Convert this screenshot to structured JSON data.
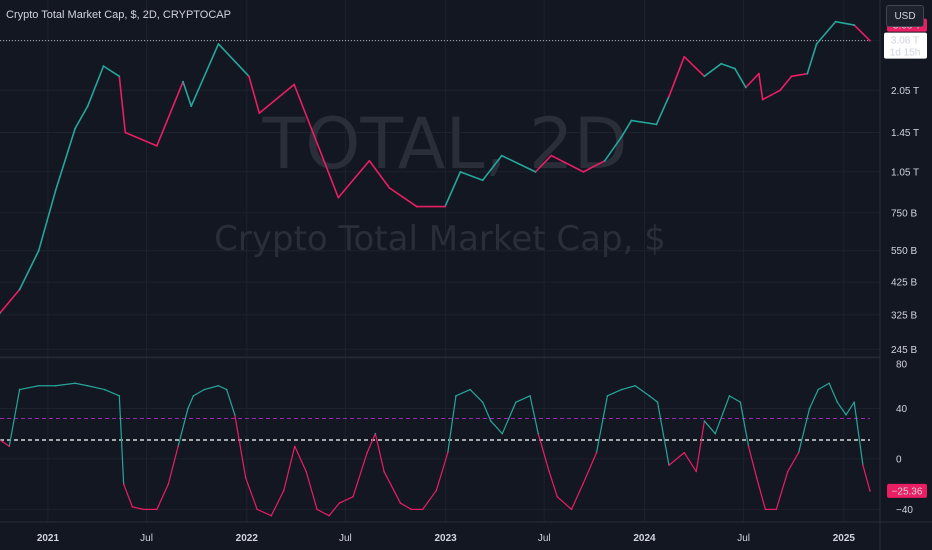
{
  "header": {
    "title": "Crypto Total Market Cap, $, 2D, CRYPTOCAP",
    "currency": "USD"
  },
  "watermark": {
    "symbol": "TOTAL, 2D",
    "description": "Crypto Total Market Cap, $"
  },
  "colors": {
    "background": "#131722",
    "bull": "#26a69a",
    "bear": "#e91e63",
    "grid": "#1e222d",
    "price_label": "#e91e63",
    "dashed_upper": "#9c27b0",
    "dashed_mid": "#ffffff"
  },
  "price_axis": {
    "ticks": [
      {
        "label": "3.08 T",
        "value": 3080000000000.0
      },
      {
        "label": "2.05 T",
        "value": 2050000000000.0
      },
      {
        "label": "1.45 T",
        "value": 1450000000000.0
      },
      {
        "label": "1.05 T",
        "value": 1050000000000.0
      },
      {
        "label": "750 B",
        "value": 750000000000.0
      },
      {
        "label": "550 B",
        "value": 550000000000.0
      },
      {
        "label": "425 B",
        "value": 425000000000.0
      },
      {
        "label": "325 B",
        "value": 325000000000.0
      },
      {
        "label": "245 B",
        "value": 245000000000.0
      }
    ],
    "current_label": "3.08 T",
    "current_price": "3.08 T",
    "countdown": "1d 15h",
    "scale": "log"
  },
  "oscillator_axis": {
    "ticks": [
      {
        "label": "80",
        "value": 80
      },
      {
        "label": "40",
        "value": 40
      },
      {
        "label": "0",
        "value": 0
      },
      {
        "label": "−40",
        "value": -40
      }
    ],
    "current_label": "−25.36",
    "current_value": -25.36
  },
  "time_axis": [
    {
      "label": "2021",
      "year": true,
      "date": "2021-01-01"
    },
    {
      "label": "Jul",
      "year": false,
      "date": "2021-07-01"
    },
    {
      "label": "2022",
      "year": true,
      "date": "2022-01-01"
    },
    {
      "label": "Jul",
      "year": false,
      "date": "2022-07-01"
    },
    {
      "label": "2023",
      "year": true,
      "date": "2023-01-01"
    },
    {
      "label": "Jul",
      "year": false,
      "date": "2023-07-01"
    },
    {
      "label": "2024",
      "year": true,
      "date": "2024-01-01"
    },
    {
      "label": "Jul",
      "year": false,
      "date": "2024-07-01"
    },
    {
      "label": "2025",
      "year": true,
      "date": "2025-01-01"
    }
  ],
  "chart_data": [
    {
      "type": "line",
      "scale": "log",
      "date_range": [
        "2020-10-05",
        "2025-02-18"
      ],
      "ylim": [
        230000000000.0,
        4300000000000.0
      ],
      "series": [
        {
          "x": [
            "2020-10-05",
            "2020-11-10",
            "2020-12-15",
            "2021-01-15",
            "2021-02-20",
            "2021-03-15",
            "2021-04-13",
            "2021-05-12",
            "2021-05-23",
            "2021-07-20",
            "2021-09-06",
            "2021-09-21",
            "2021-11-10",
            "2022-01-05",
            "2022-01-24",
            "2022-03-29",
            "2022-05-12",
            "2022-06-18",
            "2022-08-14",
            "2022-09-20",
            "2022-11-09",
            "2022-12-31",
            "2023-01-28",
            "2023-03-10",
            "2023-04-14",
            "2023-06-15",
            "2023-07-14",
            "2023-09-11",
            "2023-10-20",
            "2023-11-20",
            "2023-12-08",
            "2024-01-23",
            "2024-02-15",
            "2024-03-14",
            "2024-04-20",
            "2024-05-21",
            "2024-06-15",
            "2024-07-05",
            "2024-07-29",
            "2024-08-05",
            "2024-09-06",
            "2024-09-27",
            "2024-10-26",
            "2024-11-12",
            "2024-12-17",
            "2025-01-20",
            "2025-02-18"
          ],
          "y": [
            330000000000.0,
            400000000000.0,
            550000000000.0,
            900000000000.0,
            1500000000000.0,
            1800000000000.0,
            2500000000000.0,
            2300000000000.0,
            1450000000000.0,
            1300000000000.0,
            2200000000000.0,
            1800000000000.0,
            3000000000000.0,
            2300000000000.0,
            1700000000000.0,
            2150000000000.0,
            1300000000000.0,
            850000000000.0,
            1150000000000.0,
            920000000000.0,
            790000000000.0,
            790000000000.0,
            1050000000000.0,
            980000000000.0,
            1200000000000.0,
            1050000000000.0,
            1200000000000.0,
            1050000000000.0,
            1150000000000.0,
            1400000000000.0,
            1600000000000.0,
            1550000000000.0,
            1950000000000.0,
            2700000000000.0,
            2300000000000.0,
            2550000000000.0,
            2450000000000.0,
            2100000000000.0,
            2350000000000.0,
            1900000000000.0,
            2050000000000.0,
            2300000000000.0,
            2350000000000.0,
            3000000000000.0,
            3600000000000.0,
            3500000000000.0,
            3080000000000.0
          ]
        }
      ]
    },
    {
      "type": "line",
      "ylim": [
        -50,
        80
      ],
      "levels": [
        32,
        15
      ],
      "series": [
        {
          "x": [
            "2020-10-05",
            "2020-10-22",
            "2020-11-10",
            "2020-12-15",
            "2021-01-15",
            "2021-02-20",
            "2021-03-15",
            "2021-04-15",
            "2021-05-12",
            "2021-05-20",
            "2021-06-05",
            "2021-06-25",
            "2021-07-20",
            "2021-08-10",
            "2021-08-28",
            "2021-09-15",
            "2021-09-25",
            "2021-10-15",
            "2021-11-10",
            "2021-11-25",
            "2021-12-10",
            "2021-12-30",
            "2022-01-20",
            "2022-02-15",
            "2022-03-10",
            "2022-03-30",
            "2022-04-20",
            "2022-05-10",
            "2022-06-01",
            "2022-06-20",
            "2022-07-15",
            "2022-08-10",
            "2022-08-25",
            "2022-09-10",
            "2022-10-10",
            "2022-10-30",
            "2022-11-20",
            "2022-12-15",
            "2023-01-05",
            "2023-01-20",
            "2023-02-15",
            "2023-03-10",
            "2023-03-25",
            "2023-04-15",
            "2023-05-10",
            "2023-06-05",
            "2023-06-20",
            "2023-07-10",
            "2023-07-25",
            "2023-08-20",
            "2023-09-10",
            "2023-10-05",
            "2023-10-25",
            "2023-11-20",
            "2023-12-15",
            "2024-01-10",
            "2024-01-25",
            "2024-02-15",
            "2024-03-14",
            "2024-04-05",
            "2024-04-20",
            "2024-05-10",
            "2024-06-05",
            "2024-06-25",
            "2024-07-10",
            "2024-07-25",
            "2024-08-10",
            "2024-08-30",
            "2024-09-20",
            "2024-10-10",
            "2024-10-30",
            "2024-11-15",
            "2024-12-05",
            "2024-12-20",
            "2025-01-05",
            "2025-01-20",
            "2025-02-05",
            "2025-02-18"
          ],
          "y": [
            15,
            10,
            55,
            58,
            58,
            60,
            58,
            55,
            50,
            -20,
            -38,
            -40,
            -40,
            -20,
            10,
            40,
            50,
            55,
            58,
            55,
            35,
            -15,
            -40,
            -45,
            -25,
            10,
            -10,
            -40,
            -45,
            -35,
            -30,
            5,
            20,
            -10,
            -35,
            -40,
            -40,
            -25,
            5,
            50,
            55,
            45,
            30,
            20,
            45,
            50,
            20,
            -10,
            -30,
            -40,
            -20,
            5,
            50,
            55,
            58,
            50,
            45,
            -5,
            5,
            -10,
            30,
            20,
            50,
            45,
            10,
            -15,
            -40,
            -40,
            -10,
            5,
            40,
            55,
            60,
            45,
            35,
            45,
            -5,
            -25.36
          ]
        }
      ]
    }
  ]
}
